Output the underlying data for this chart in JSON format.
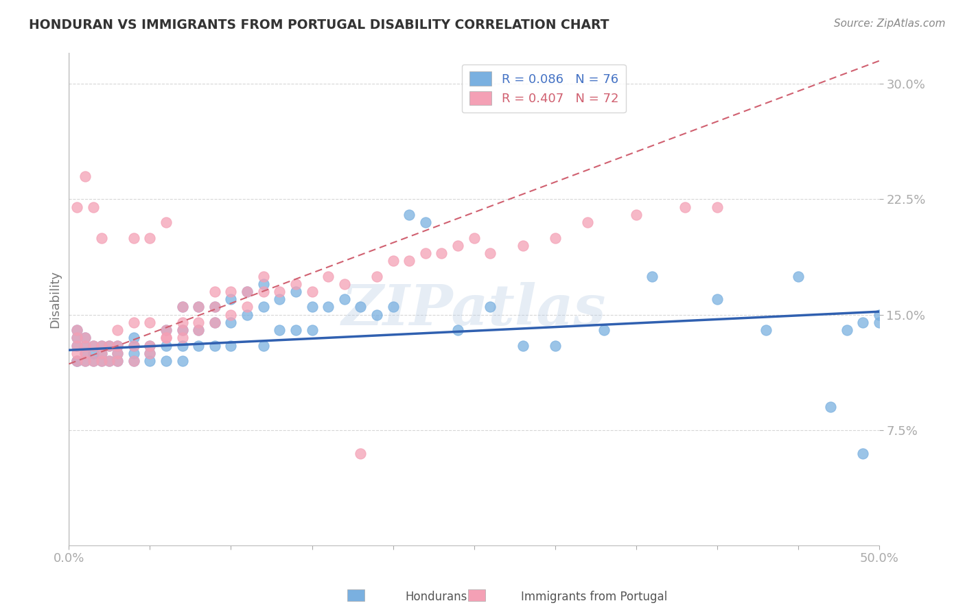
{
  "title": "HONDURAN VS IMMIGRANTS FROM PORTUGAL DISABILITY CORRELATION CHART",
  "source": "Source: ZipAtlas.com",
  "ylabel": "Disability",
  "xlim": [
    0.0,
    0.5
  ],
  "ylim": [
    0.0,
    0.32
  ],
  "yticks": [
    0.075,
    0.15,
    0.225,
    0.3
  ],
  "ytick_labels": [
    "7.5%",
    "15.0%",
    "22.5%",
    "30.0%"
  ],
  "xticks": [
    0.0,
    0.05,
    0.1,
    0.15,
    0.2,
    0.25,
    0.3,
    0.35,
    0.4,
    0.45,
    0.5
  ],
  "watermark": "ZIPatlas",
  "blue_color": "#7ab0e0",
  "pink_color": "#f4a0b5",
  "blue_line_color": "#3060b0",
  "pink_line_color": "#d06070",
  "background_color": "#ffffff",
  "grid_color": "#cccccc",
  "title_color": "#333333",
  "axis_label_color": "#777777",
  "tick_label_color": "#4472c4",
  "legend_blue_text": "#4472c4",
  "legend_pink_text": "#d06070",
  "R_blue": 0.086,
  "N_blue": 76,
  "R_pink": 0.407,
  "N_pink": 72,
  "blue_scatter_x": [
    0.005,
    0.005,
    0.005,
    0.005,
    0.005,
    0.01,
    0.01,
    0.01,
    0.01,
    0.015,
    0.015,
    0.015,
    0.02,
    0.02,
    0.02,
    0.025,
    0.025,
    0.03,
    0.03,
    0.03,
    0.04,
    0.04,
    0.04,
    0.04,
    0.05,
    0.05,
    0.05,
    0.06,
    0.06,
    0.06,
    0.07,
    0.07,
    0.07,
    0.07,
    0.08,
    0.08,
    0.08,
    0.09,
    0.09,
    0.09,
    0.1,
    0.1,
    0.1,
    0.11,
    0.11,
    0.12,
    0.12,
    0.12,
    0.13,
    0.13,
    0.14,
    0.14,
    0.15,
    0.15,
    0.16,
    0.17,
    0.18,
    0.19,
    0.2,
    0.21,
    0.22,
    0.24,
    0.26,
    0.28,
    0.3,
    0.33,
    0.36,
    0.4,
    0.43,
    0.45,
    0.47,
    0.48,
    0.49,
    0.49,
    0.5,
    0.5
  ],
  "blue_scatter_y": [
    0.12,
    0.13,
    0.135,
    0.14,
    0.12,
    0.125,
    0.13,
    0.135,
    0.12,
    0.125,
    0.13,
    0.12,
    0.125,
    0.13,
    0.12,
    0.13,
    0.12,
    0.125,
    0.13,
    0.12,
    0.13,
    0.125,
    0.135,
    0.12,
    0.13,
    0.125,
    0.12,
    0.14,
    0.13,
    0.12,
    0.155,
    0.14,
    0.13,
    0.12,
    0.155,
    0.14,
    0.13,
    0.155,
    0.145,
    0.13,
    0.16,
    0.145,
    0.13,
    0.165,
    0.15,
    0.17,
    0.155,
    0.13,
    0.16,
    0.14,
    0.165,
    0.14,
    0.155,
    0.14,
    0.155,
    0.16,
    0.155,
    0.15,
    0.155,
    0.215,
    0.21,
    0.14,
    0.155,
    0.13,
    0.13,
    0.14,
    0.175,
    0.16,
    0.14,
    0.175,
    0.09,
    0.14,
    0.145,
    0.06,
    0.145,
    0.15
  ],
  "pink_scatter_x": [
    0.005,
    0.005,
    0.005,
    0.005,
    0.005,
    0.005,
    0.01,
    0.01,
    0.01,
    0.01,
    0.01,
    0.015,
    0.015,
    0.015,
    0.02,
    0.02,
    0.02,
    0.02,
    0.025,
    0.025,
    0.03,
    0.03,
    0.03,
    0.03,
    0.04,
    0.04,
    0.04,
    0.04,
    0.05,
    0.05,
    0.05,
    0.05,
    0.06,
    0.06,
    0.06,
    0.06,
    0.07,
    0.07,
    0.07,
    0.07,
    0.08,
    0.08,
    0.08,
    0.09,
    0.09,
    0.09,
    0.1,
    0.1,
    0.11,
    0.11,
    0.12,
    0.12,
    0.13,
    0.14,
    0.15,
    0.16,
    0.17,
    0.18,
    0.19,
    0.2,
    0.21,
    0.22,
    0.23,
    0.24,
    0.25,
    0.26,
    0.28,
    0.3,
    0.32,
    0.35,
    0.38,
    0.4
  ],
  "pink_scatter_y": [
    0.12,
    0.125,
    0.13,
    0.135,
    0.14,
    0.22,
    0.12,
    0.125,
    0.13,
    0.135,
    0.24,
    0.12,
    0.13,
    0.22,
    0.12,
    0.125,
    0.13,
    0.2,
    0.13,
    0.12,
    0.125,
    0.13,
    0.14,
    0.12,
    0.12,
    0.13,
    0.145,
    0.2,
    0.125,
    0.13,
    0.145,
    0.2,
    0.135,
    0.14,
    0.135,
    0.21,
    0.135,
    0.14,
    0.145,
    0.155,
    0.14,
    0.145,
    0.155,
    0.145,
    0.155,
    0.165,
    0.15,
    0.165,
    0.155,
    0.165,
    0.165,
    0.175,
    0.165,
    0.17,
    0.165,
    0.175,
    0.17,
    0.06,
    0.175,
    0.185,
    0.185,
    0.19,
    0.19,
    0.195,
    0.2,
    0.19,
    0.195,
    0.2,
    0.21,
    0.215,
    0.22,
    0.22
  ],
  "blue_line_x": [
    0.0,
    0.5
  ],
  "blue_line_y": [
    0.127,
    0.152
  ],
  "pink_line_x": [
    0.0,
    0.5
  ],
  "pink_line_y": [
    0.118,
    0.315
  ]
}
